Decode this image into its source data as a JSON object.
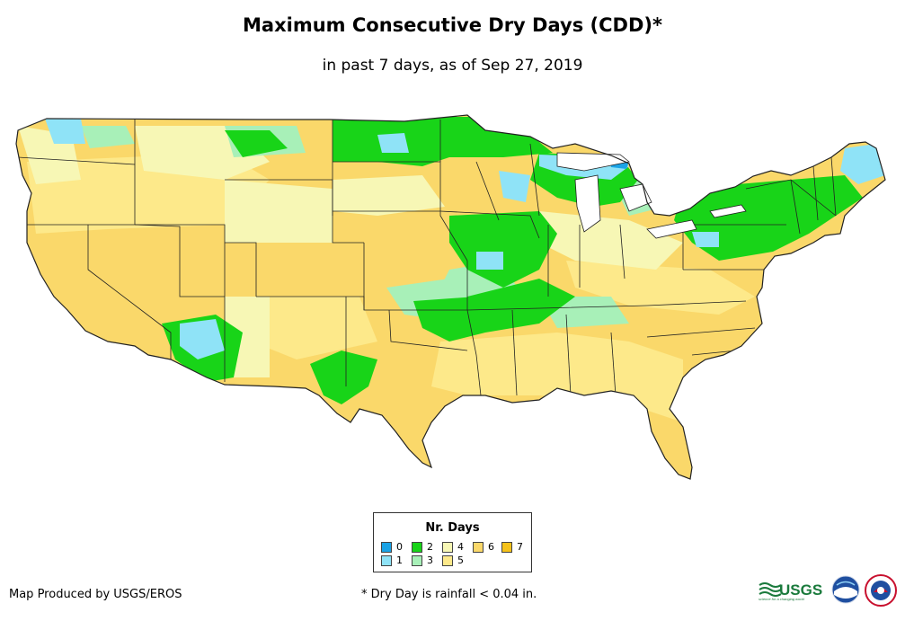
{
  "title": "Maximum Consecutive Dry Days (CDD)*",
  "subtitle": "in past 7 days, as of Sep 27, 2019",
  "legend": {
    "title": "Nr. Days",
    "items": [
      {
        "label": "0",
        "color": "#1aa3e6"
      },
      {
        "label": "1",
        "color": "#8fe3f7"
      },
      {
        "label": "2",
        "color": "#18d418"
      },
      {
        "label": "3",
        "color": "#a8f0b8"
      },
      {
        "label": "4",
        "color": "#f7f7b5"
      },
      {
        "label": "5",
        "color": "#fde98a"
      },
      {
        "label": "6",
        "color": "#fad86a"
      },
      {
        "label": "7",
        "color": "#f5c21a"
      }
    ]
  },
  "footer": {
    "producer": "Map Produced by USGS/EROS",
    "note": "* Dry Day is rainfall < 0.04 in."
  },
  "logos": {
    "usgs": "USGS",
    "usgs_tagline": "science for a changing world"
  }
}
